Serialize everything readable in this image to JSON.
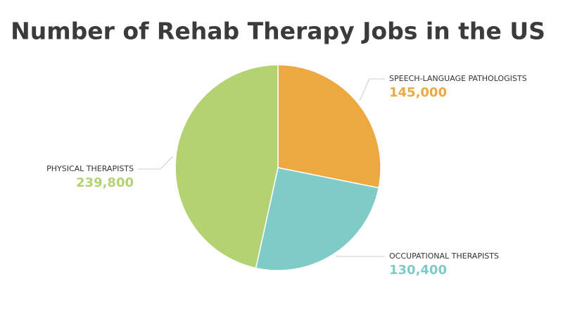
{
  "chart_data": {
    "type": "pie",
    "title": "Number of Rehab Therapy Jobs in the US",
    "categories": [
      "SPEECH-LANGUAGE PATHOLOGISTS",
      "OCCUPATIONAL THERAPISTS",
      "PHYSICAL THERAPISTS"
    ],
    "values": [
      145000,
      130400,
      239800
    ],
    "value_labels": [
      "145,000",
      "130,400",
      "239,800"
    ],
    "colors": [
      "#eca942",
      "#7ecbc8",
      "#b3d373"
    ]
  }
}
